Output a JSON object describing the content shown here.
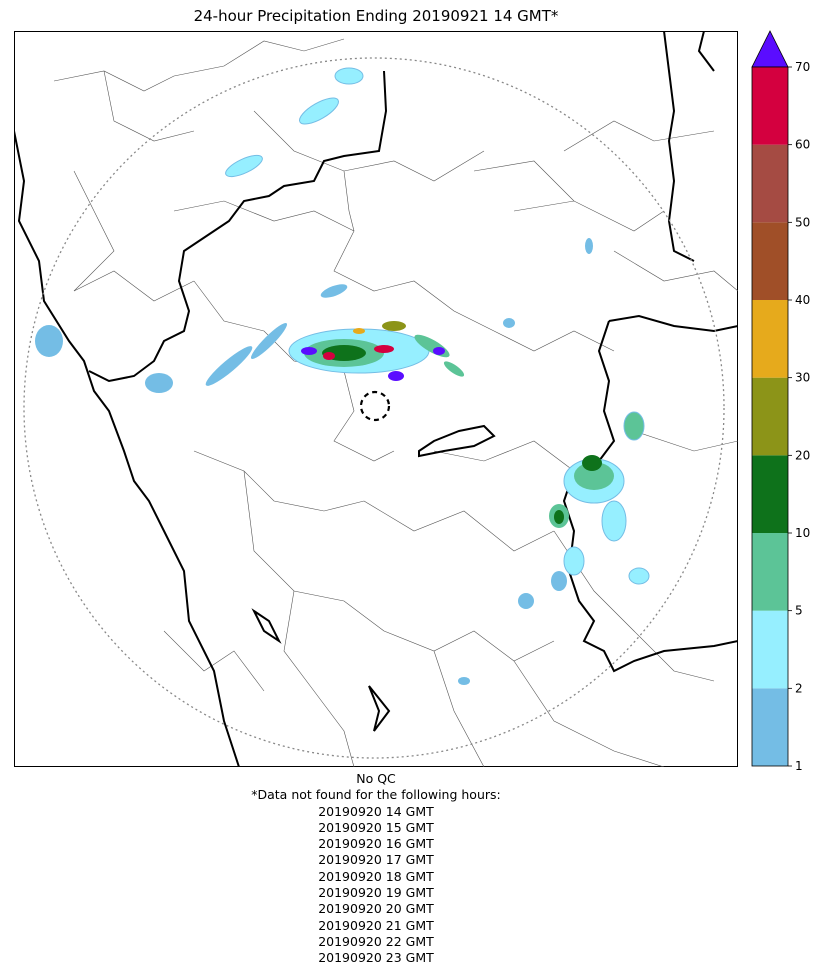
{
  "title": "24-hour Precipitation Ending 20190921 14 GMT*",
  "colorbar": {
    "ticks": [
      "1",
      "2",
      "5",
      "10",
      "20",
      "30",
      "40",
      "50",
      "60",
      "70"
    ],
    "bins": [
      {
        "from": "1",
        "to": "2",
        "color": "#74bde5"
      },
      {
        "from": "2",
        "to": "5",
        "color": "#96efff"
      },
      {
        "from": "5",
        "to": "10",
        "color": "#5cc497"
      },
      {
        "from": "10",
        "to": "20",
        "color": "#0e721b"
      },
      {
        "from": "20",
        "to": "30",
        "color": "#8c9418"
      },
      {
        "from": "30",
        "to": "40",
        "color": "#e6aa1c"
      },
      {
        "from": "40",
        "to": "50",
        "color": "#a04f28"
      },
      {
        "from": "50",
        "to": "60",
        "color": "#a54b43"
      },
      {
        "from": "60",
        "to": "70",
        "color": "#d4003f"
      }
    ],
    "extend_color": "#5a0dff"
  },
  "footer": {
    "qc": "No QC",
    "note": "*Data not found for the following hours:",
    "hours": [
      "20190920 14 GMT",
      "20190920 15 GMT",
      "20190920 16 GMT",
      "20190920 17 GMT",
      "20190920 18 GMT",
      "20190920 19 GMT",
      "20190920 20 GMT",
      "20190920 21 GMT",
      "20190920 22 GMT",
      "20190920 23 GMT"
    ]
  },
  "map": {
    "range_ring": "dotted",
    "radar_site_marker": "dashed-circle",
    "border_color": "#000000",
    "district_color": "#555555"
  }
}
